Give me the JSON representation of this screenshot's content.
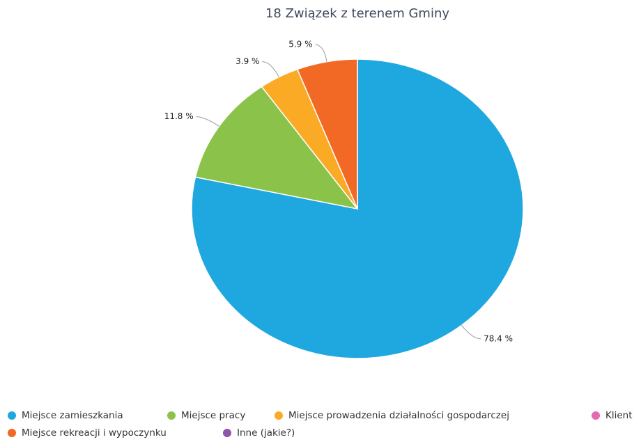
{
  "chart_data": {
    "type": "pie",
    "title": "18 Związek z terenem Gminy",
    "series": [
      {
        "name": "Miejsce zamieszkania",
        "color": "#1fa8e0",
        "value": 78.4,
        "value_label": "78.4 %"
      },
      {
        "name": "Miejsce pracy",
        "color": "#8bc34a",
        "value": 11.8,
        "value_label": "11.8 %"
      },
      {
        "name": "Miejsce prowadzenia działalności gospodarczej",
        "color": "#fbaa26",
        "value": 3.9,
        "value_label": "3.9 %"
      },
      {
        "name": "Klient",
        "color": "#e36bb0",
        "value": 0,
        "value_label": null
      },
      {
        "name": "Miejsce rekreacji i wypoczynku",
        "color": "#f26926",
        "value": 5.9,
        "value_label": "5.9 %"
      },
      {
        "name": "Inne (jakie?)",
        "color": "#8e55a8",
        "value": 0,
        "value_label": null
      }
    ]
  }
}
